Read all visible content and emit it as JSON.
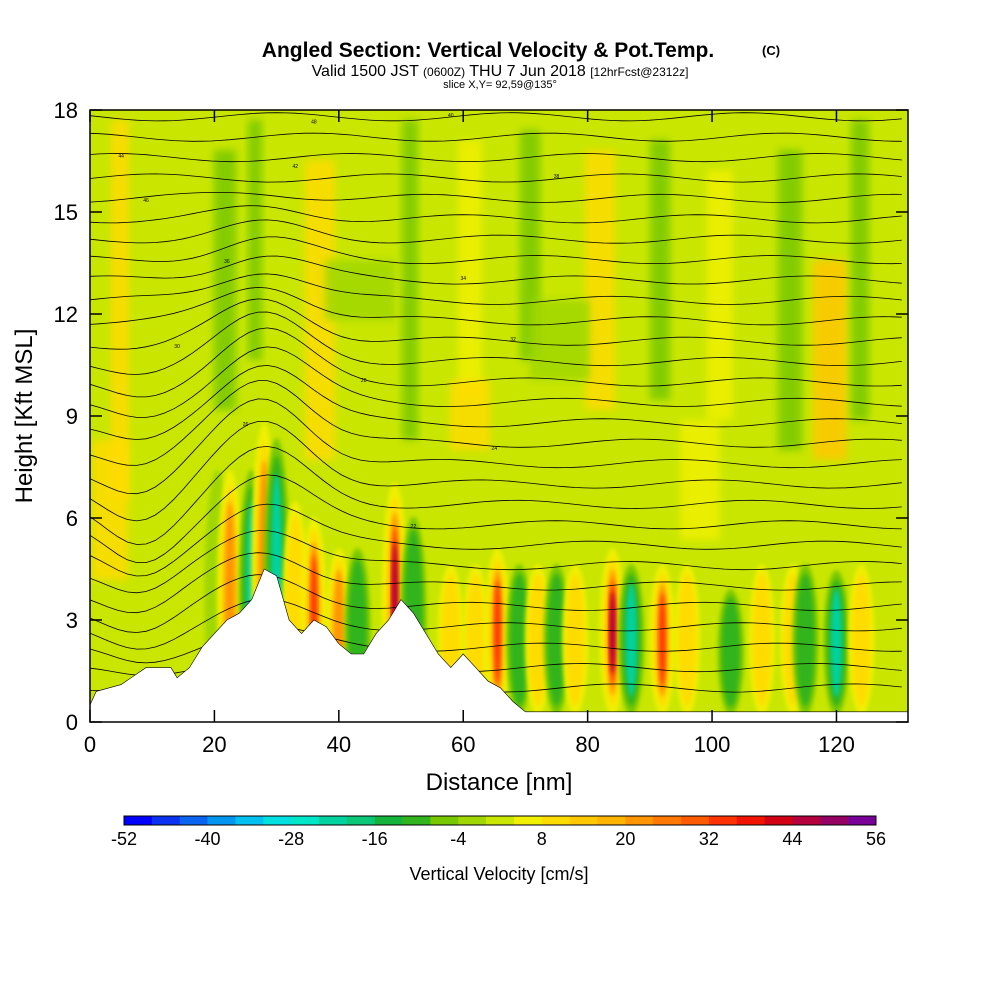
{
  "title": {
    "main": "Angled Section: Vertical Velocity & Pot.Temp.",
    "copyright": "(C)",
    "valid_prefix": "Valid 1500 JST",
    "valid_z": "(0600Z)",
    "valid_date": "THU 7 Jun 2018",
    "fcst": "[12hrFcst@2312z]",
    "slice": "slice X,Y= 92,59@135°"
  },
  "chart_data": {
    "type": "heatmap",
    "xlabel": "Distance [nm]",
    "ylabel": "Height [Kft MSL]",
    "xlim": [
      0,
      131.5
    ],
    "ylim": [
      0,
      18
    ],
    "x_ticks": [
      "0",
      "20",
      "40",
      "60",
      "80",
      "100",
      "120"
    ],
    "y_ticks": [
      "0",
      "3",
      "6",
      "9",
      "12",
      "15",
      "18"
    ],
    "colorbar": {
      "title": "Vertical Velocity [cm/s]",
      "tick_labels": [
        "-52",
        "-40",
        "-28",
        "-16",
        "-4",
        "8",
        "20",
        "32",
        "44",
        "56"
      ],
      "levels": [
        -52,
        -48,
        -44,
        -40,
        -36,
        -32,
        -28,
        -24,
        -20,
        -16,
        -12,
        -8,
        -4,
        0,
        4,
        8,
        12,
        16,
        20,
        24,
        28,
        32,
        36,
        40,
        44,
        48,
        52,
        56
      ],
      "colors": [
        "#0000ff",
        "#0a32f0",
        "#0a64f0",
        "#0096f0",
        "#00c0f0",
        "#00e0e0",
        "#00e6c8",
        "#00d2a0",
        "#0ac878",
        "#14b43c",
        "#32b41e",
        "#78c800",
        "#a0d700",
        "#c8e600",
        "#f0f000",
        "#ffdc00",
        "#ffc800",
        "#ffb400",
        "#ff9600",
        "#ff7800",
        "#ff5a00",
        "#ff3200",
        "#f01400",
        "#d20014",
        "#b4003c",
        "#960064",
        "#780096"
      ]
    },
    "terrain_kft": [
      [
        0,
        0.5
      ],
      [
        1,
        0.9
      ],
      [
        5,
        1.1
      ],
      [
        9,
        1.6
      ],
      [
        13,
        1.6
      ],
      [
        14,
        1.3
      ],
      [
        16,
        1.6
      ],
      [
        18,
        2.2
      ],
      [
        20,
        2.6
      ],
      [
        22,
        3.0
      ],
      [
        24,
        3.2
      ],
      [
        26,
        3.6
      ],
      [
        28,
        4.5
      ],
      [
        30,
        4.3
      ],
      [
        32,
        3.0
      ],
      [
        34,
        2.6
      ],
      [
        36,
        3.0
      ],
      [
        38,
        2.8
      ],
      [
        40,
        2.3
      ],
      [
        42,
        2.0
      ],
      [
        44,
        2.0
      ],
      [
        46,
        2.6
      ],
      [
        48,
        3.0
      ],
      [
        50,
        3.6
      ],
      [
        52,
        3.2
      ],
      [
        54,
        2.6
      ],
      [
        56,
        2.0
      ],
      [
        58,
        1.6
      ],
      [
        60,
        2.0
      ],
      [
        62,
        1.6
      ],
      [
        64,
        1.2
      ],
      [
        66,
        1.0
      ],
      [
        68,
        0.6
      ],
      [
        70,
        0.3
      ],
      [
        131.5,
        0.3
      ]
    ],
    "updraft_columns": [
      {
        "x": 20.5,
        "w": -4,
        "ytop": 8.0
      },
      {
        "x": 22.5,
        "w": 20,
        "ytop": 8.0
      },
      {
        "x": 26,
        "w": -30,
        "ytop": 8.0
      },
      {
        "x": 28,
        "w": 28,
        "ytop": 9.5
      },
      {
        "x": 30,
        "w": -28,
        "ytop": 9.0
      },
      {
        "x": 33,
        "w": 12,
        "ytop": 7.0
      },
      {
        "x": 36,
        "w": 40,
        "ytop": 6.5
      },
      {
        "x": 40,
        "w": 20,
        "ytop": 5.5
      },
      {
        "x": 43,
        "w": -16,
        "ytop": 5.5
      },
      {
        "x": 49,
        "w": 44,
        "ytop": 7.6
      },
      {
        "x": 52,
        "w": -10,
        "ytop": 6.5
      },
      {
        "x": 58,
        "w": 8,
        "ytop": 5.0
      },
      {
        "x": 62,
        "w": 8,
        "ytop": 5.0
      },
      {
        "x": 65.5,
        "w": 40,
        "ytop": 5.5
      },
      {
        "x": 69,
        "w": -16,
        "ytop": 5.0
      },
      {
        "x": 72,
        "w": 8,
        "ytop": 5.0
      },
      {
        "x": 75,
        "w": -16,
        "ytop": 5.0
      },
      {
        "x": 78,
        "w": 12,
        "ytop": 5.0
      },
      {
        "x": 84,
        "w": 56,
        "ytop": 5.5
      },
      {
        "x": 87,
        "w": -28,
        "ytop": 5.0
      },
      {
        "x": 92,
        "w": 32,
        "ytop": 5.0
      },
      {
        "x": 96,
        "w": 8,
        "ytop": 5.0
      },
      {
        "x": 103,
        "w": -16,
        "ytop": 4.2
      },
      {
        "x": 108,
        "w": 8,
        "ytop": 5.0
      },
      {
        "x": 113,
        "w": 12,
        "ytop": 5.0
      },
      {
        "x": 115,
        "w": -16,
        "ytop": 5.0
      },
      {
        "x": 120,
        "w": -28,
        "ytop": 4.8
      },
      {
        "x": 124,
        "w": 12,
        "ytop": 5.0
      }
    ],
    "theta_contour_labels": [
      "44",
      "46",
      "48",
      "40",
      "42",
      "38",
      "36",
      "34",
      "32",
      "30",
      "28",
      "26",
      "24",
      "22"
    ]
  }
}
